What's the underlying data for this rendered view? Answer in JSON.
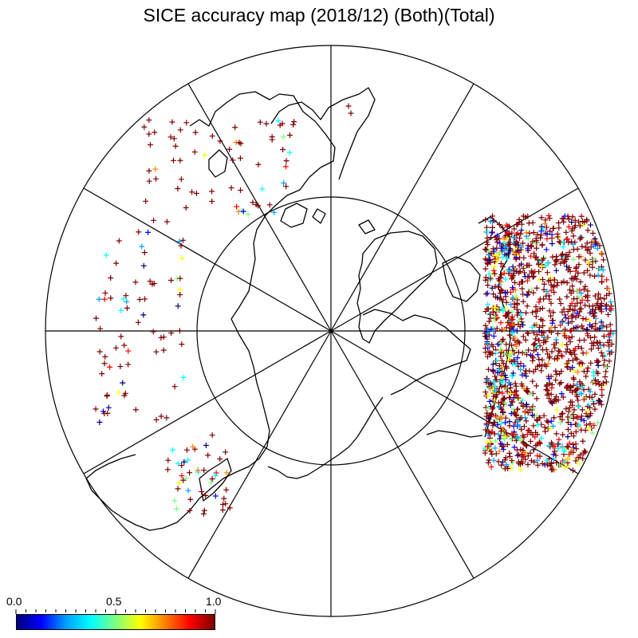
{
  "title": "SICE accuracy map (2018/12) (Both)(Total)",
  "colorbar": {
    "min_label": "0.0",
    "mid_label": "0.5",
    "max_label": "1.0",
    "range": [
      0.0,
      1.0
    ],
    "colors": [
      "#000080",
      "#0000ff",
      "#00a0ff",
      "#00ffff",
      "#80ff80",
      "#ffff00",
      "#ff8000",
      "#ff0000",
      "#800000"
    ]
  },
  "map": {
    "projection": "north-polar-stereographic",
    "graticule_circles": 2,
    "meridian_lines": 12,
    "marker_symbol": "+"
  }
}
